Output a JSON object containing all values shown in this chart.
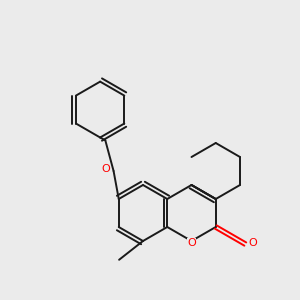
{
  "bg_color": "#ebebeb",
  "bond_color": "#1a1a1a",
  "oxygen_color": "#ff0000",
  "bond_lw": 1.4,
  "dbo": 0.018,
  "figsize": [
    3.0,
    3.0
  ],
  "dpi": 100,
  "xlim": [
    -1.55,
    1.35
  ],
  "ylim": [
    -1.05,
    1.85
  ]
}
